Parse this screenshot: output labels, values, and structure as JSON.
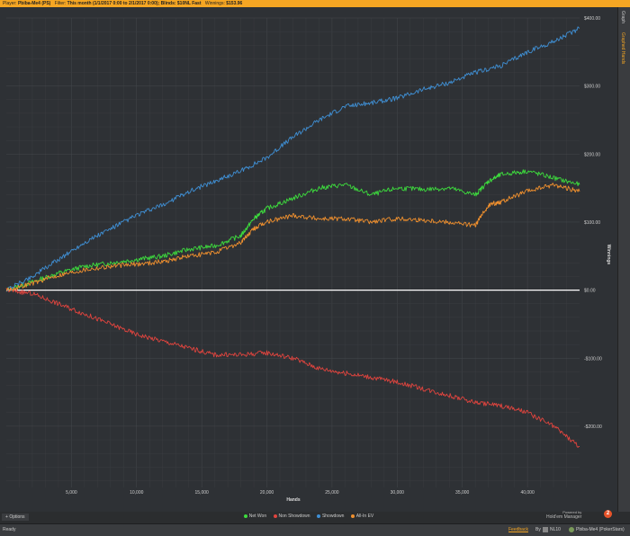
{
  "topbar": {
    "player_label": "Player:",
    "player_value": "Pbiba-Me4 (PS)",
    "filter_label": "Filter:",
    "filter_value": "This month (1/1/2017 0:00 to 2/1/2017 0:00); Blinds: $10NL Fast",
    "winnings_label": "Winnings:",
    "winnings_value": "$153.96"
  },
  "right_tabs": [
    "Graph",
    "Graphed Hands"
  ],
  "options_label": "Options",
  "brand": {
    "powered": "Powered by",
    "name": "Hold'em Manager",
    "badge": "2"
  },
  "status": {
    "ready": "Ready",
    "feedback": "Feedback",
    "by": "By",
    "stake": "NL10",
    "player": "Pbiba-Me4 (PokerStars)"
  },
  "colors": {
    "net_won": "#3ddc3d",
    "non_showdown": "#e0443e",
    "showdown": "#3f8fd4",
    "all_in_ev": "#f0902e",
    "accent": "#f5a623"
  },
  "chart_data": {
    "type": "line",
    "xlabel": "Hands",
    "ylabel": "Winnings",
    "xlim": [
      0,
      44000
    ],
    "ylim": [
      -290,
      400
    ],
    "x_ticks": [
      5000,
      10000,
      15000,
      20000,
      25000,
      30000,
      35000,
      40000
    ],
    "x_tick_labels": [
      "5,000",
      "10,000",
      "15,000",
      "20,000",
      "25,000",
      "30,000",
      "35,000",
      "40,000"
    ],
    "y_ticks": [
      400,
      300,
      200,
      100,
      0,
      -100,
      -200
    ],
    "y_tick_labels": [
      "$400.00",
      "$300.00",
      "$200.00",
      "$100.00",
      "$0.00",
      "-$100.00",
      "-$200.00"
    ],
    "legend_position": "bottom",
    "series": [
      {
        "name": "Net Won",
        "color": "#3ddc3d",
        "x": [
          0,
          2000,
          4000,
          6000,
          8000,
          10000,
          12000,
          14000,
          16000,
          18000,
          19000,
          20000,
          22000,
          24000,
          26000,
          28000,
          30000,
          32000,
          34000,
          36000,
          37000,
          38000,
          40000,
          42000,
          44000
        ],
        "y": [
          0,
          12,
          25,
          35,
          40,
          45,
          50,
          60,
          65,
          80,
          105,
          120,
          135,
          150,
          155,
          140,
          150,
          148,
          150,
          140,
          160,
          170,
          175,
          165,
          155
        ]
      },
      {
        "name": "Non Showdown",
        "color": "#e0443e",
        "x": [
          0,
          2000,
          4000,
          6000,
          8000,
          10000,
          12000,
          14000,
          16000,
          18000,
          20000,
          22000,
          24000,
          26000,
          28000,
          30000,
          32000,
          34000,
          36000,
          38000,
          40000,
          42000,
          44000
        ],
        "y": [
          0,
          -5,
          -20,
          -35,
          -50,
          -65,
          -75,
          -85,
          -95,
          -95,
          -92,
          -100,
          -115,
          -122,
          -128,
          -135,
          -145,
          -155,
          -165,
          -170,
          -180,
          -200,
          -230
        ]
      },
      {
        "name": "Showdown",
        "color": "#3f8fd4",
        "x": [
          0,
          2000,
          4000,
          6000,
          8000,
          10000,
          12000,
          14000,
          16000,
          18000,
          20000,
          22000,
          24000,
          26000,
          28000,
          30000,
          32000,
          34000,
          36000,
          38000,
          40000,
          42000,
          44000
        ],
        "y": [
          0,
          20,
          45,
          70,
          90,
          110,
          125,
          145,
          160,
          175,
          195,
          225,
          250,
          270,
          275,
          282,
          295,
          305,
          320,
          330,
          350,
          365,
          385
        ]
      },
      {
        "name": "All-In EV",
        "color": "#f0902e",
        "x": [
          0,
          2000,
          4000,
          6000,
          8000,
          10000,
          12000,
          14000,
          16000,
          18000,
          19000,
          20000,
          22000,
          24000,
          26000,
          28000,
          30000,
          32000,
          34000,
          36000,
          37000,
          38000,
          40000,
          42000,
          44000
        ],
        "y": [
          0,
          10,
          22,
          30,
          35,
          38,
          42,
          50,
          55,
          70,
          90,
          100,
          110,
          105,
          105,
          100,
          105,
          103,
          100,
          95,
          125,
          130,
          145,
          155,
          145
        ]
      }
    ]
  }
}
